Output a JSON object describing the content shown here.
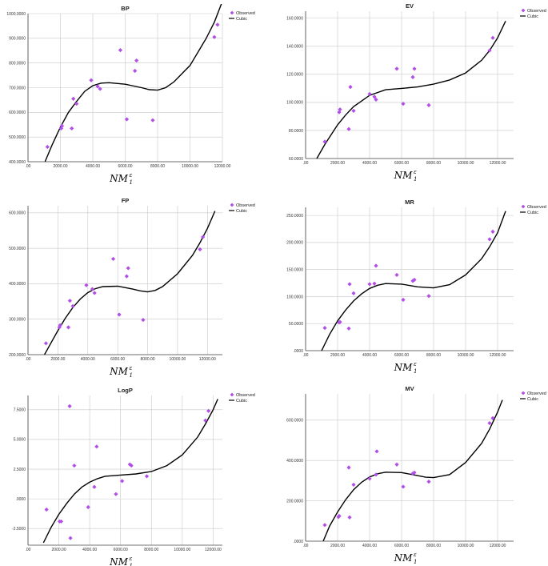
{
  "legend": {
    "observed": "Observed",
    "cubic": "Cubic"
  },
  "colors": {
    "marker": "#b14fe6",
    "curve": "#000000",
    "grid": "#c8c8c8",
    "axis": "#444444"
  },
  "chart_data": [
    {
      "type": "scatter",
      "title": "BP",
      "xlabel": {
        "main": "NM",
        "sup": "ε",
        "sub": "1"
      },
      "xlim": [
        0,
        12000
      ],
      "ylim": [
        400,
        1000
      ],
      "xticks": [
        0,
        2000,
        4000,
        6000,
        8000,
        10000,
        12000
      ],
      "xtick_labels": [
        ".00",
        "2000.00",
        "4000.00",
        "6000.00",
        "8000.00",
        "10000.00",
        "12000.00"
      ],
      "yticks": [
        400,
        500,
        600,
        700,
        800,
        900,
        1000
      ],
      "ytick_labels": [
        "400.0000",
        "500.0000",
        "600.0000",
        "700.0000",
        "800.0000",
        "900.0000",
        "1000.0000"
      ],
      "observed": [
        [
          1200,
          460
        ],
        [
          2050,
          535
        ],
        [
          2100,
          545
        ],
        [
          2700,
          535
        ],
        [
          2800,
          655
        ],
        [
          3000,
          635
        ],
        [
          3900,
          730
        ],
        [
          4300,
          705
        ],
        [
          4450,
          695
        ],
        [
          5700,
          852
        ],
        [
          6100,
          572
        ],
        [
          6600,
          768
        ],
        [
          6700,
          810
        ],
        [
          7700,
          568
        ],
        [
          11500,
          905
        ],
        [
          11700,
          955
        ]
      ],
      "curve": [
        [
          1050,
          400
        ],
        [
          1500,
          470
        ],
        [
          2000,
          540
        ],
        [
          2500,
          600
        ],
        [
          3000,
          645
        ],
        [
          3500,
          685
        ],
        [
          4000,
          708
        ],
        [
          4500,
          718
        ],
        [
          5000,
          720
        ],
        [
          6000,
          714
        ],
        [
          7000,
          700
        ],
        [
          7500,
          692
        ],
        [
          8000,
          690
        ],
        [
          8500,
          700
        ],
        [
          9000,
          723
        ],
        [
          10000,
          790
        ],
        [
          11000,
          900
        ],
        [
          11500,
          965
        ],
        [
          12000,
          1050
        ]
      ]
    },
    {
      "type": "scatter",
      "title": "EV",
      "xlabel": {
        "main": "NM",
        "sup": "ε",
        "sub": "1"
      },
      "xlim": [
        0,
        13000
      ],
      "ylim": [
        60,
        165
      ],
      "xticks": [
        0,
        2000,
        4000,
        6000,
        8000,
        10000,
        12000
      ],
      "xtick_labels": [
        ".00",
        "2000.00",
        "4000.00",
        "6000.00",
        "8000.00",
        "10000.00",
        "12000.00"
      ],
      "yticks": [
        60,
        80,
        100,
        120,
        140,
        160
      ],
      "ytick_labels": [
        "60.0000",
        "80.0000",
        "100.0000",
        "120.0000",
        "140.0000",
        "160.0000"
      ],
      "observed": [
        [
          1200,
          72
        ],
        [
          2100,
          93
        ],
        [
          2150,
          95
        ],
        [
          2700,
          81
        ],
        [
          2800,
          111
        ],
        [
          3000,
          94
        ],
        [
          4000,
          106
        ],
        [
          4300,
          104
        ],
        [
          4400,
          102
        ],
        [
          5700,
          124
        ],
        [
          6100,
          99
        ],
        [
          6700,
          118
        ],
        [
          6800,
          124
        ],
        [
          7700,
          98
        ],
        [
          11500,
          137
        ],
        [
          11700,
          146
        ]
      ],
      "curve": [
        [
          700,
          60
        ],
        [
          1200,
          70
        ],
        [
          2000,
          84
        ],
        [
          2500,
          91
        ],
        [
          3000,
          97
        ],
        [
          4000,
          105
        ],
        [
          5000,
          109
        ],
        [
          6000,
          110
        ],
        [
          7000,
          111
        ],
        [
          8000,
          113
        ],
        [
          9000,
          116
        ],
        [
          10000,
          121
        ],
        [
          11000,
          130
        ],
        [
          11500,
          137
        ],
        [
          12000,
          146
        ],
        [
          12500,
          158
        ]
      ]
    },
    {
      "type": "scatter",
      "title": "FP",
      "xlabel": {
        "main": "NM",
        "sup": "ε",
        "sub": "1"
      },
      "xlim": [
        0,
        13000
      ],
      "ylim": [
        200,
        620
      ],
      "xticks": [
        0,
        2000,
        4000,
        6000,
        8000,
        10000,
        12000
      ],
      "xtick_labels": [
        ".00",
        "2000.00",
        "4000.00",
        "6000.00",
        "8000.00",
        "10000.00",
        "12000.00"
      ],
      "yticks": [
        200,
        300,
        400,
        500,
        600
      ],
      "ytick_labels": [
        "200.0000",
        "300.0000",
        "400.0000",
        "500.0000",
        "600.0000"
      ],
      "observed": [
        [
          1200,
          232
        ],
        [
          2100,
          277
        ],
        [
          2150,
          283
        ],
        [
          2700,
          277
        ],
        [
          2800,
          352
        ],
        [
          3000,
          337
        ],
        [
          3900,
          396
        ],
        [
          4300,
          385
        ],
        [
          4450,
          374
        ],
        [
          5700,
          470
        ],
        [
          6100,
          313
        ],
        [
          6600,
          421
        ],
        [
          6700,
          444
        ],
        [
          7700,
          298
        ],
        [
          11500,
          497
        ],
        [
          11700,
          532
        ]
      ],
      "curve": [
        [
          1100,
          200
        ],
        [
          1500,
          230
        ],
        [
          2000,
          268
        ],
        [
          2500,
          303
        ],
        [
          3000,
          333
        ],
        [
          3500,
          357
        ],
        [
          4000,
          375
        ],
        [
          4500,
          386
        ],
        [
          5000,
          392
        ],
        [
          6000,
          393
        ],
        [
          7000,
          385
        ],
        [
          7500,
          380
        ],
        [
          8000,
          377
        ],
        [
          8500,
          381
        ],
        [
          9000,
          392
        ],
        [
          10000,
          428
        ],
        [
          11000,
          480
        ],
        [
          11500,
          516
        ],
        [
          12000,
          556
        ],
        [
          12500,
          605
        ]
      ]
    },
    {
      "type": "scatter",
      "title": "MR",
      "xlabel": {
        "main": "NM",
        "sup": "ε",
        "sub": "1"
      },
      "xlim": [
        0,
        13000
      ],
      "ylim": [
        0,
        265
      ],
      "xticks": [
        0,
        2000,
        4000,
        6000,
        8000,
        10000,
        12000
      ],
      "xtick_labels": [
        ".00",
        "2000.00",
        "4000.00",
        "6000.00",
        "8000.00",
        "10000.00",
        "12000.00"
      ],
      "yticks": [
        0,
        50,
        100,
        150,
        200,
        250
      ],
      "ytick_labels": [
        ".0000",
        "50.0000",
        "100.0000",
        "150.0000",
        "200.0000",
        "250.0000"
      ],
      "observed": [
        [
          1200,
          42
        ],
        [
          2100,
          52
        ],
        [
          2150,
          53
        ],
        [
          2700,
          41
        ],
        [
          2750,
          123
        ],
        [
          3000,
          106
        ],
        [
          4000,
          123
        ],
        [
          4300,
          124
        ],
        [
          4400,
          157
        ],
        [
          5700,
          140
        ],
        [
          6100,
          94
        ],
        [
          6700,
          129
        ],
        [
          6800,
          131
        ],
        [
          7700,
          101
        ],
        [
          11500,
          206
        ],
        [
          11700,
          220
        ]
      ],
      "curve": [
        [
          1000,
          0
        ],
        [
          1500,
          30
        ],
        [
          2000,
          55
        ],
        [
          2500,
          75
        ],
        [
          3000,
          92
        ],
        [
          3500,
          105
        ],
        [
          4000,
          115
        ],
        [
          4500,
          121
        ],
        [
          5000,
          124
        ],
        [
          6000,
          123
        ],
        [
          7000,
          118
        ],
        [
          8000,
          116
        ],
        [
          9000,
          122
        ],
        [
          10000,
          140
        ],
        [
          11000,
          170
        ],
        [
          11500,
          192
        ],
        [
          12000,
          218
        ],
        [
          12500,
          258
        ]
      ]
    },
    {
      "type": "scatter",
      "title": "LogP",
      "xlabel": {
        "main": "NM",
        "sup": "ε",
        "sub": "1"
      },
      "xlim": [
        0,
        12600
      ],
      "ylim": [
        -3.9,
        8.7
      ],
      "xticks": [
        0,
        2000,
        4000,
        6000,
        8000,
        10000,
        12000
      ],
      "xtick_labels": [
        ".00",
        "2000.00",
        "4000.00",
        "6000.00",
        "8000.00",
        "10000.00",
        "12000.00"
      ],
      "yticks": [
        -2.5,
        0,
        2.5,
        5,
        7.5
      ],
      "ytick_labels": [
        "-2.5000",
        ".0000",
        "2.5000",
        "5.0000",
        "7.5000"
      ],
      "observed": [
        [
          1200,
          -0.9
        ],
        [
          2050,
          -1.9
        ],
        [
          2150,
          -1.9
        ],
        [
          2700,
          7.8
        ],
        [
          2750,
          -3.3
        ],
        [
          3000,
          2.8
        ],
        [
          3900,
          -0.7
        ],
        [
          4300,
          1.0
        ],
        [
          4450,
          4.4
        ],
        [
          5700,
          0.4
        ],
        [
          6100,
          1.5
        ],
        [
          6600,
          2.9
        ],
        [
          6700,
          2.8
        ],
        [
          7700,
          1.9
        ],
        [
          11500,
          6.6
        ],
        [
          11700,
          7.4
        ]
      ],
      "curve": [
        [
          1000,
          -3.7
        ],
        [
          1500,
          -2.4
        ],
        [
          2000,
          -1.3
        ],
        [
          2500,
          -0.4
        ],
        [
          3000,
          0.4
        ],
        [
          3500,
          1.0
        ],
        [
          4000,
          1.4
        ],
        [
          4500,
          1.7
        ],
        [
          5000,
          1.9
        ],
        [
          6000,
          2.0
        ],
        [
          7000,
          2.1
        ],
        [
          8000,
          2.3
        ],
        [
          9000,
          2.8
        ],
        [
          10000,
          3.7
        ],
        [
          11000,
          5.2
        ],
        [
          11500,
          6.3
        ],
        [
          12000,
          7.5
        ],
        [
          12300,
          8.4
        ]
      ]
    },
    {
      "type": "scatter",
      "title": "MV",
      "xlabel": {
        "main": "NM",
        "sup": "ε",
        "sub": "1"
      },
      "xlim": [
        0,
        13000
      ],
      "ylim": [
        0,
        730
      ],
      "xticks": [
        0,
        2000,
        4000,
        6000,
        8000,
        10000,
        12000
      ],
      "xtick_labels": [
        ".00",
        "2000.00",
        "4000.00",
        "6000.00",
        "8000.00",
        "10000.00",
        "12000.00"
      ],
      "yticks": [
        0,
        200,
        400,
        600
      ],
      "ytick_labels": [
        ".0000",
        "200.0000",
        "400.0000",
        "600.0000"
      ],
      "observed": [
        [
          1200,
          80
        ],
        [
          2050,
          120
        ],
        [
          2100,
          125
        ],
        [
          2700,
          365
        ],
        [
          2750,
          118
        ],
        [
          3000,
          280
        ],
        [
          4000,
          310
        ],
        [
          4400,
          330
        ],
        [
          4450,
          445
        ],
        [
          5700,
          380
        ],
        [
          6100,
          270
        ],
        [
          6700,
          335
        ],
        [
          6800,
          340
        ],
        [
          7700,
          295
        ],
        [
          11500,
          585
        ],
        [
          11700,
          610
        ]
      ],
      "curve": [
        [
          1100,
          0
        ],
        [
          1500,
          75
        ],
        [
          2000,
          145
        ],
        [
          2500,
          205
        ],
        [
          3000,
          255
        ],
        [
          3500,
          292
        ],
        [
          4000,
          318
        ],
        [
          4500,
          334
        ],
        [
          5000,
          342
        ],
        [
          6000,
          340
        ],
        [
          7000,
          325
        ],
        [
          7500,
          317
        ],
        [
          8000,
          315
        ],
        [
          9000,
          330
        ],
        [
          10000,
          390
        ],
        [
          11000,
          485
        ],
        [
          11500,
          555
        ],
        [
          12000,
          640
        ],
        [
          12300,
          700
        ]
      ]
    }
  ]
}
